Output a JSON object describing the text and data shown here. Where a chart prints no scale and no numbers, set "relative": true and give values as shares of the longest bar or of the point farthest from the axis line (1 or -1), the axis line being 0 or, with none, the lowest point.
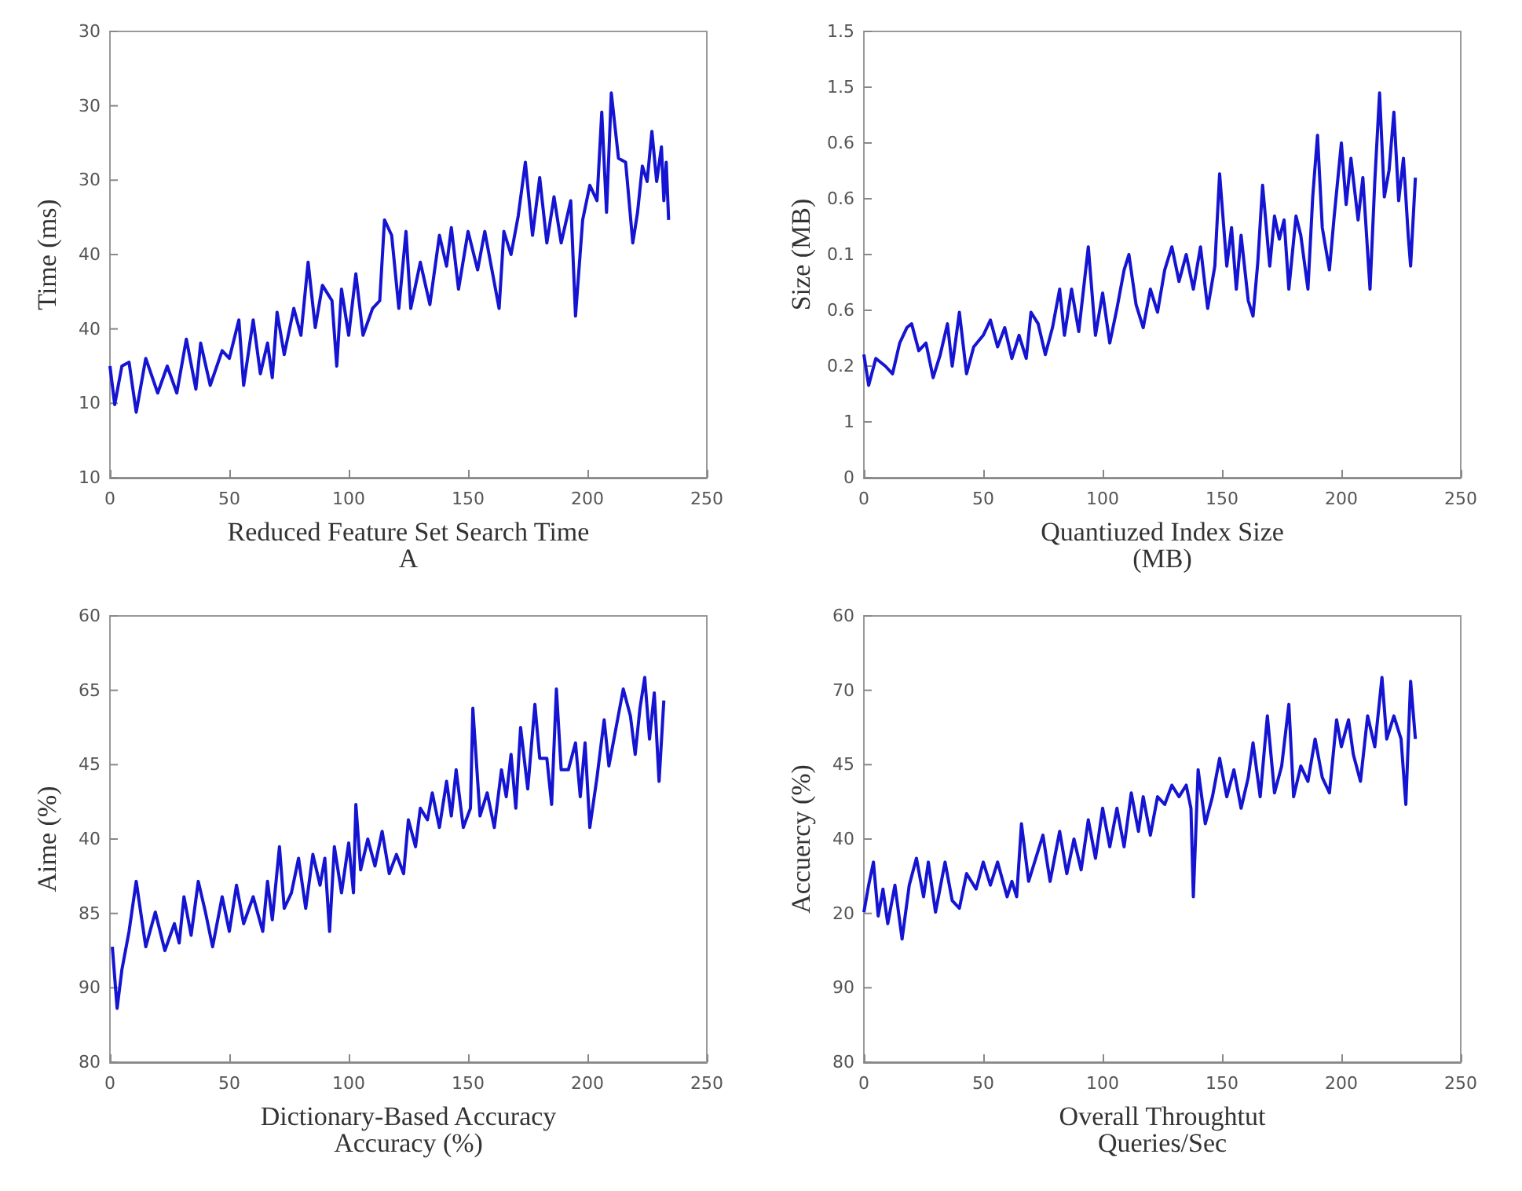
{
  "chart_data": [
    {
      "type": "line",
      "relative": true,
      "xlabel": "Reduced Feature Set Search Time\nA",
      "ylabel": "Time (ms)",
      "annotations": [
        "10",
        "10",
        "40",
        "40",
        "30",
        "30",
        "30"
      ],
      "color": "#1414d2",
      "marker": "none",
      "line_style": "solid",
      "grid": false,
      "xlim": [
        0,
        250
      ],
      "xticks": [
        0,
        50,
        100,
        150,
        200,
        250
      ],
      "x": [
        0,
        2,
        5,
        8,
        11,
        15,
        20,
        24,
        28,
        32,
        36,
        38,
        42,
        47,
        50,
        54,
        56,
        60,
        63,
        66,
        68,
        70,
        73,
        77,
        80,
        83,
        86,
        89,
        93,
        95,
        97,
        100,
        103,
        106,
        110,
        113,
        115,
        118,
        121,
        124,
        126,
        130,
        134,
        138,
        141,
        143,
        146,
        150,
        154,
        157,
        160,
        163,
        165,
        168,
        171,
        174,
        177,
        180,
        183,
        186,
        189,
        193,
        195,
        198,
        201,
        204,
        206,
        208,
        210,
        213,
        216,
        219,
        221,
        223,
        225,
        227,
        229,
        231,
        232,
        233,
        234
      ],
      "values": [
        0.29,
        0.19,
        0.29,
        0.3,
        0.17,
        0.31,
        0.22,
        0.29,
        0.22,
        0.36,
        0.23,
        0.35,
        0.24,
        0.33,
        0.31,
        0.41,
        0.24,
        0.41,
        0.27,
        0.35,
        0.26,
        0.43,
        0.32,
        0.44,
        0.37,
        0.56,
        0.39,
        0.5,
        0.46,
        0.29,
        0.49,
        0.37,
        0.53,
        0.37,
        0.44,
        0.46,
        0.67,
        0.63,
        0.44,
        0.64,
        0.44,
        0.56,
        0.45,
        0.63,
        0.55,
        0.65,
        0.49,
        0.64,
        0.54,
        0.64,
        0.54,
        0.44,
        0.64,
        0.58,
        0.68,
        0.82,
        0.63,
        0.78,
        0.61,
        0.73,
        0.61,
        0.72,
        0.42,
        0.67,
        0.76,
        0.72,
        0.95,
        0.69,
        1,
        0.83,
        0.82,
        0.61,
        0.69,
        0.81,
        0.77,
        0.9,
        0.77,
        0.86,
        0.72,
        0.82,
        0.67
      ]
    },
    {
      "type": "line",
      "relative": true,
      "xlabel": "Quantiuzed Index Size\n(MB)",
      "ylabel": "Size (MB)",
      "annotations": [
        "0",
        "1",
        "0.2",
        "0.6",
        "0.1",
        "0.6",
        "0.6",
        "1.5",
        "1.5"
      ],
      "color": "#1414d2",
      "marker": "none",
      "line_style": "solid",
      "grid": false,
      "xlim": [
        0,
        250
      ],
      "xticks": [
        0,
        50,
        100,
        150,
        200,
        250
      ],
      "x": [
        0,
        2,
        5,
        9,
        12,
        15,
        18,
        20,
        23,
        26,
        29,
        32,
        35,
        37,
        40,
        43,
        46,
        50,
        53,
        56,
        59,
        62,
        65,
        68,
        70,
        73,
        76,
        79,
        82,
        84,
        87,
        90,
        94,
        97,
        100,
        103,
        106,
        109,
        111,
        114,
        117,
        120,
        123,
        126,
        129,
        132,
        135,
        138,
        141,
        144,
        147,
        149,
        152,
        154,
        156,
        158,
        161,
        163,
        165,
        167,
        170,
        172,
        174,
        176,
        178,
        181,
        183,
        186,
        188,
        190,
        192,
        195,
        197,
        200,
        202,
        204,
        207,
        209,
        212,
        214,
        216,
        218,
        220,
        222,
        224,
        226,
        228,
        229,
        231
      ],
      "values": [
        0.32,
        0.24,
        0.31,
        0.29,
        0.27,
        0.35,
        0.39,
        0.4,
        0.33,
        0.35,
        0.26,
        0.32,
        0.4,
        0.29,
        0.43,
        0.27,
        0.34,
        0.37,
        0.41,
        0.34,
        0.39,
        0.31,
        0.37,
        0.31,
        0.43,
        0.4,
        0.32,
        0.39,
        0.49,
        0.37,
        0.49,
        0.38,
        0.6,
        0.37,
        0.48,
        0.35,
        0.44,
        0.54,
        0.58,
        0.45,
        0.39,
        0.49,
        0.43,
        0.54,
        0.6,
        0.51,
        0.58,
        0.49,
        0.6,
        0.44,
        0.55,
        0.79,
        0.55,
        0.65,
        0.49,
        0.63,
        0.46,
        0.42,
        0.56,
        0.76,
        0.55,
        0.68,
        0.62,
        0.67,
        0.49,
        0.68,
        0.63,
        0.49,
        0.73,
        0.89,
        0.65,
        0.54,
        0.68,
        0.87,
        0.71,
        0.83,
        0.67,
        0.78,
        0.49,
        0.77,
        1,
        0.73,
        0.8,
        0.95,
        0.72,
        0.83,
        0.63,
        0.55,
        0.78
      ]
    },
    {
      "type": "line",
      "relative": true,
      "xlabel": "Dictionary-Based Accuracy\nAccuracy (%)",
      "ylabel": "Aime (%)",
      "annotations": [
        "80",
        "90",
        "85",
        "40",
        "45",
        "65",
        "60"
      ],
      "color": "#1414d2",
      "marker": "none",
      "line_style": "solid",
      "grid": false,
      "xlim": [
        0,
        250
      ],
      "xticks": [
        0,
        50,
        100,
        150,
        200,
        250
      ],
      "x": [
        1,
        3,
        5,
        8,
        11,
        15,
        19,
        23,
        27,
        29,
        31,
        34,
        37,
        40,
        43,
        47,
        50,
        53,
        56,
        60,
        64,
        66,
        68,
        71,
        73,
        76,
        79,
        82,
        85,
        88,
        90,
        92,
        94,
        97,
        100,
        102,
        103,
        105,
        108,
        111,
        114,
        117,
        120,
        123,
        125,
        128,
        130,
        133,
        135,
        138,
        141,
        143,
        145,
        148,
        151,
        152,
        155,
        158,
        161,
        164,
        166,
        168,
        170,
        172,
        175,
        178,
        180,
        183,
        185,
        187,
        189,
        192,
        195,
        197,
        199,
        201,
        204,
        207,
        209,
        212,
        215,
        218,
        220,
        222,
        224,
        226,
        228,
        230,
        232
      ],
      "values": [
        0.3,
        0.14,
        0.24,
        0.34,
        0.47,
        0.3,
        0.39,
        0.29,
        0.36,
        0.31,
        0.43,
        0.33,
        0.47,
        0.39,
        0.3,
        0.43,
        0.34,
        0.46,
        0.36,
        0.43,
        0.34,
        0.47,
        0.37,
        0.56,
        0.4,
        0.44,
        0.53,
        0.4,
        0.54,
        0.46,
        0.53,
        0.34,
        0.56,
        0.44,
        0.57,
        0.44,
        0.67,
        0.5,
        0.58,
        0.51,
        0.6,
        0.49,
        0.54,
        0.49,
        0.63,
        0.56,
        0.66,
        0.63,
        0.7,
        0.61,
        0.73,
        0.64,
        0.76,
        0.61,
        0.66,
        0.92,
        0.64,
        0.7,
        0.61,
        0.76,
        0.69,
        0.8,
        0.66,
        0.87,
        0.71,
        0.93,
        0.79,
        0.79,
        0.67,
        0.97,
        0.76,
        0.76,
        0.83,
        0.69,
        0.83,
        0.61,
        0.74,
        0.89,
        0.77,
        0.87,
        0.97,
        0.9,
        0.8,
        0.92,
        1,
        0.84,
        0.96,
        0.73,
        0.94
      ]
    },
    {
      "type": "line",
      "relative": true,
      "xlabel": "Overall Throughtut\nQueries/Sec",
      "ylabel": "Accuercy (%)",
      "annotations": [
        "80",
        "90",
        "20",
        "40",
        "45",
        "70",
        "60"
      ],
      "color": "#1414d2",
      "marker": "none",
      "line_style": "solid",
      "grid": false,
      "xlim": [
        0,
        250
      ],
      "xticks": [
        0,
        50,
        100,
        150,
        200,
        250
      ],
      "x": [
        0,
        2,
        4,
        6,
        8,
        10,
        13,
        16,
        19,
        22,
        25,
        27,
        30,
        34,
        37,
        40,
        43,
        47,
        50,
        53,
        56,
        60,
        62,
        64,
        66,
        69,
        72,
        75,
        78,
        82,
        85,
        88,
        91,
        94,
        97,
        100,
        103,
        106,
        109,
        112,
        115,
        117,
        120,
        123,
        126,
        129,
        132,
        135,
        137,
        138,
        140,
        143,
        146,
        149,
        152,
        155,
        158,
        161,
        163,
        166,
        169,
        172,
        175,
        178,
        180,
        183,
        186,
        189,
        192,
        195,
        198,
        200,
        203,
        205,
        208,
        211,
        214,
        217,
        219,
        222,
        225,
        227,
        229,
        231
      ],
      "values": [
        0.39,
        0.46,
        0.52,
        0.38,
        0.45,
        0.36,
        0.46,
        0.32,
        0.46,
        0.53,
        0.43,
        0.52,
        0.39,
        0.52,
        0.42,
        0.4,
        0.49,
        0.45,
        0.52,
        0.46,
        0.52,
        0.43,
        0.47,
        0.43,
        0.62,
        0.47,
        0.53,
        0.59,
        0.47,
        0.6,
        0.49,
        0.58,
        0.5,
        0.63,
        0.53,
        0.66,
        0.56,
        0.66,
        0.56,
        0.7,
        0.6,
        0.69,
        0.59,
        0.69,
        0.67,
        0.72,
        0.69,
        0.72,
        0.66,
        0.43,
        0.76,
        0.62,
        0.69,
        0.79,
        0.69,
        0.76,
        0.66,
        0.74,
        0.83,
        0.69,
        0.9,
        0.7,
        0.77,
        0.93,
        0.69,
        0.77,
        0.73,
        0.84,
        0.74,
        0.7,
        0.89,
        0.82,
        0.89,
        0.8,
        0.73,
        0.9,
        0.82,
        1,
        0.84,
        0.9,
        0.84,
        0.67,
        0.99,
        0.84
      ]
    }
  ]
}
